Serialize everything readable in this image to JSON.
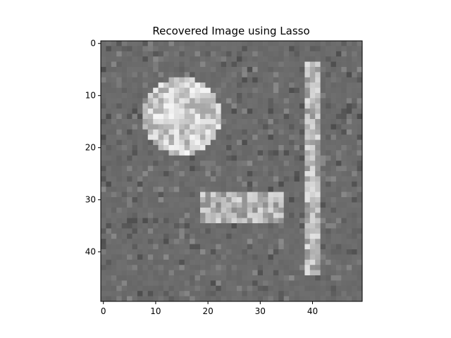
{
  "chart_data": {
    "type": "heatmap",
    "title": "Recovered Image using Lasso",
    "xlabel": "",
    "ylabel": "",
    "grid": false,
    "colormap": "gray",
    "rows": 50,
    "cols": 50,
    "xlim": [
      -0.5,
      49.5
    ],
    "ylim": [
      49.5,
      -0.5
    ],
    "x_ticks": [
      0,
      10,
      20,
      30,
      40
    ],
    "y_ticks": [
      0,
      10,
      20,
      30,
      40
    ],
    "background_value": 0.42,
    "circle": {
      "center_col": 15,
      "center_row": 14,
      "radius": 7.3,
      "value": 0.8
    },
    "rectangle": {
      "col_start": 19,
      "col_end": 34,
      "row_start": 29,
      "row_end": 34,
      "value": 0.7
    },
    "vertical_bar": {
      "col_start": 39,
      "col_end": 41,
      "row_start": 4,
      "row_end": 44,
      "value": 0.72
    },
    "noise_level": 0.12
  }
}
